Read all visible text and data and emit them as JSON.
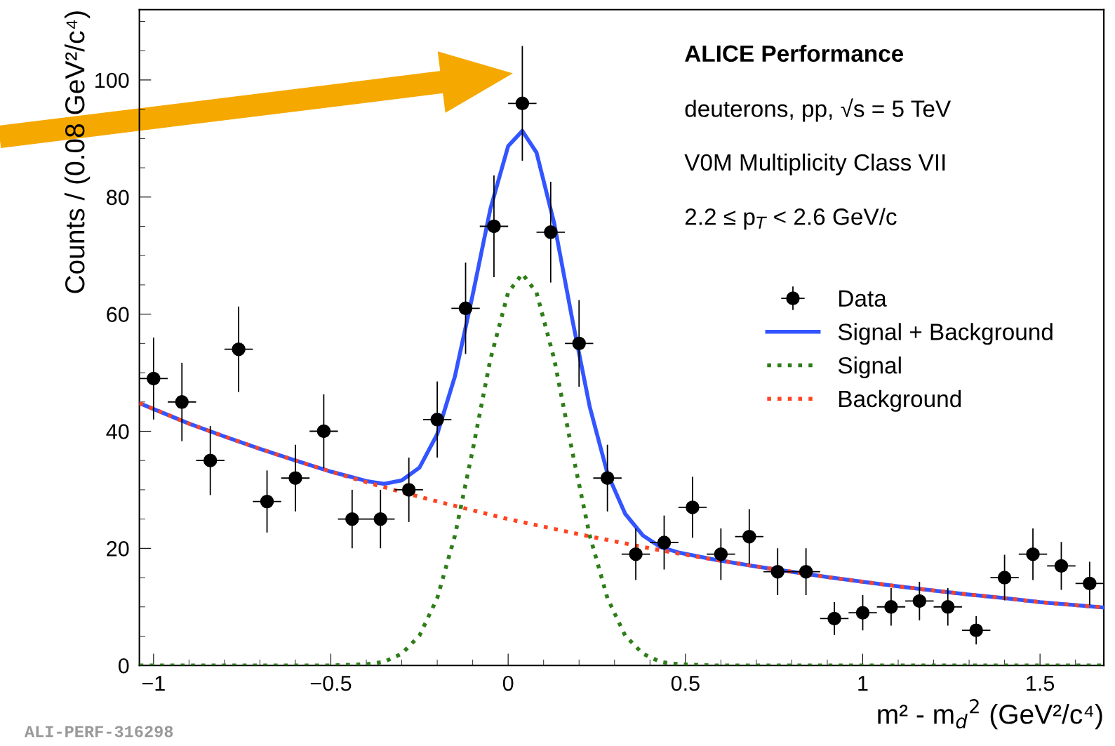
{
  "chart_data": {
    "type": "scatter",
    "xlabel": "m² - m$_{d}$$^{2}$ (GeV²/c⁴)",
    "ylabel": "Counts / (0.08 GeV²/c⁴)",
    "annotations": [
      "ALICE Performance",
      "deuterons, pp, √s = 5 TeV",
      "V0M Multiplicity Class VII",
      "2.2 ≤ p$_{T}$ < 2.6 GeV/c",
      "ALI-PERF-316298"
    ],
    "xlim": [
      -1.04,
      1.68
    ],
    "ylim": [
      0,
      112
    ],
    "xticks": [
      {
        "value": -1,
        "label": "−1"
      },
      {
        "value": -0.5,
        "label": "−0.5"
      },
      0,
      0.5,
      1,
      1.5
    ],
    "yticks": [
      0,
      20,
      40,
      60,
      80,
      100
    ],
    "grid": false,
    "legend": "right",
    "series": [
      {
        "name": "Data",
        "color": "#000000",
        "marker": "circle",
        "x": [
          -1.0,
          -0.92,
          -0.84,
          -0.76,
          -0.68,
          -0.6,
          -0.52,
          -0.44,
          -0.36,
          -0.28,
          -0.2,
          -0.12,
          -0.04,
          0.04,
          0.12,
          0.2,
          0.28,
          0.36,
          0.44,
          0.52,
          0.6,
          0.68,
          0.76,
          0.84,
          0.92,
          1.0,
          1.08,
          1.16,
          1.24,
          1.32,
          1.4,
          1.48,
          1.56,
          1.64
        ],
        "values": [
          49,
          45,
          35,
          54,
          28,
          32,
          40,
          25,
          25,
          30,
          42,
          61,
          75,
          96,
          74,
          55,
          32,
          19,
          21,
          27,
          19,
          22,
          16,
          16,
          8,
          9,
          10,
          11,
          10,
          6,
          15,
          19,
          17,
          14
        ],
        "errors": [
          7,
          6.7,
          5.9,
          7.3,
          5.3,
          5.7,
          6.3,
          5,
          5,
          5.5,
          6.5,
          7.8,
          8.7,
          9.8,
          8.6,
          7.4,
          5.7,
          4.4,
          4.6,
          5.2,
          4.4,
          4.7,
          4,
          4,
          2.8,
          3,
          3.2,
          3.3,
          3.2,
          2.4,
          3.9,
          4.4,
          4.1,
          3.7
        ],
        "xerrors": [
          0.04,
          0.04,
          0.04,
          0.04,
          0.04,
          0.04,
          0.04,
          0.04,
          0.04,
          0.04,
          0.04,
          0.04,
          0.04,
          0.04,
          0.04,
          0.04,
          0.04,
          0.04,
          0.04,
          0.04,
          0.04,
          0.04,
          0.04,
          0.04,
          0.04,
          0.04,
          0.04,
          0.04,
          0.04,
          0.04,
          0.04,
          0.04,
          0.04,
          0.04
        ]
      },
      {
        "name": "Signal + Background",
        "type": "line",
        "color": "#3355ff",
        "line_style": "solid",
        "x": [
          -1.04,
          -0.9,
          -0.8,
          -0.7,
          -0.6,
          -0.5,
          -0.4,
          -0.35,
          -0.3,
          -0.25,
          -0.2,
          -0.15,
          -0.1,
          -0.05,
          0,
          0.04,
          0.08,
          0.13,
          0.18,
          0.23,
          0.28,
          0.33,
          0.38,
          0.43,
          0.48,
          0.58,
          0.7,
          0.8,
          0.9,
          1.0,
          1.1,
          1.2,
          1.3,
          1.4,
          1.5,
          1.6,
          1.68
        ],
        "values": [
          44.8,
          41.3,
          39.1,
          37.0,
          35.0,
          33.1,
          31.5,
          31.0,
          31.6,
          33.8,
          39.5,
          49.4,
          63.3,
          78.0,
          88.7,
          91.3,
          87.6,
          75.5,
          59.4,
          44.2,
          32.8,
          25.9,
          22.2,
          20.2,
          19.3,
          18.1,
          16.9,
          16.0,
          15.1,
          14.3,
          13.5,
          12.8,
          12.1,
          11.5,
          10.8,
          10.3,
          9.9
        ]
      },
      {
        "name": "Signal",
        "type": "line",
        "color": "#2e7d18",
        "line_style": "dotted",
        "x": [
          -1.04,
          -0.5,
          -0.4,
          -0.35,
          -0.3,
          -0.25,
          -0.2,
          -0.15,
          -0.1,
          -0.05,
          0,
          0.04,
          0.08,
          0.13,
          0.18,
          0.23,
          0.28,
          0.33,
          0.38,
          0.43,
          0.48,
          0.58,
          1.68
        ],
        "values": [
          0,
          0,
          0.2,
          0.6,
          2.0,
          5.1,
          11.5,
          22.2,
          36.8,
          52.3,
          63.7,
          66.9,
          63.7,
          52.3,
          36.8,
          22.2,
          11.5,
          5.1,
          2.0,
          0.6,
          0.2,
          0,
          0
        ]
      },
      {
        "name": "Background",
        "type": "line",
        "color": "#ff4422",
        "line_style": "dotted",
        "x": [
          -1.04,
          -0.9,
          -0.8,
          -0.7,
          -0.6,
          -0.5,
          -0.4,
          -0.3,
          -0.2,
          -0.1,
          0,
          0.1,
          0.2,
          0.3,
          0.4,
          0.5,
          0.6,
          0.7,
          0.8,
          0.9,
          1.0,
          1.1,
          1.2,
          1.3,
          1.4,
          1.5,
          1.6,
          1.68
        ],
        "values": [
          44.8,
          41.3,
          39.1,
          37.0,
          35.0,
          33.1,
          31.3,
          29.6,
          28.0,
          26.5,
          25.0,
          23.7,
          22.4,
          21.2,
          20.0,
          18.9,
          17.9,
          16.9,
          16.0,
          15.1,
          14.3,
          13.5,
          12.8,
          12.1,
          11.5,
          10.8,
          10.3,
          9.9
        ]
      }
    ]
  }
}
